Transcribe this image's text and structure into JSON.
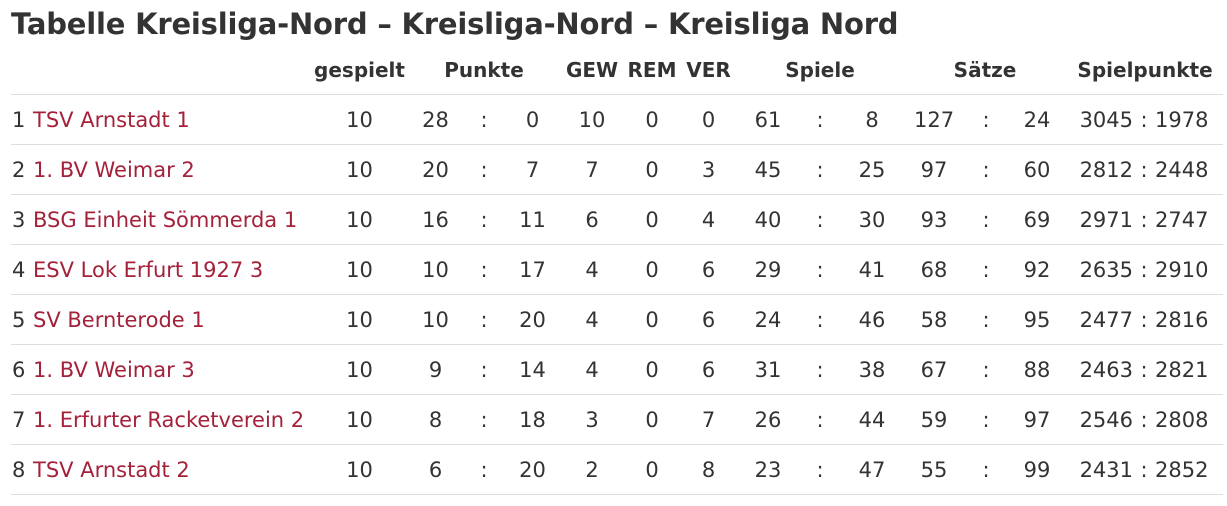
{
  "page": {
    "title": "Tabelle Kreisliga-Nord – Kreisliga-Nord – Kreisliga Nord"
  },
  "colors": {
    "team_link": "#a4213a",
    "text": "#333333",
    "row_border": "#dddddd"
  },
  "table": {
    "headers": {
      "played": "gespielt",
      "points": "Punkte",
      "won": "GEW",
      "drawn": "REM",
      "lost": "VER",
      "games": "Spiele",
      "sets": "Sätze",
      "match_points": "Spielpunkte"
    },
    "separator": ":",
    "rows": [
      {
        "rank": "1",
        "team": "TSV Arnstadt 1",
        "played": "10",
        "points_for": "28",
        "points_against": "0",
        "won": "10",
        "drawn": "0",
        "lost": "0",
        "games_for": "61",
        "games_against": "8",
        "sets_for": "127",
        "sets_against": "24",
        "sp_for": "3045",
        "sp_against": "1978"
      },
      {
        "rank": "2",
        "team": "1. BV Weimar 2",
        "played": "10",
        "points_for": "20",
        "points_against": "7",
        "won": "7",
        "drawn": "0",
        "lost": "3",
        "games_for": "45",
        "games_against": "25",
        "sets_for": "97",
        "sets_against": "60",
        "sp_for": "2812",
        "sp_against": "2448"
      },
      {
        "rank": "3",
        "team": "BSG Einheit Sömmerda 1",
        "played": "10",
        "points_for": "16",
        "points_against": "11",
        "won": "6",
        "drawn": "0",
        "lost": "4",
        "games_for": "40",
        "games_against": "30",
        "sets_for": "93",
        "sets_against": "69",
        "sp_for": "2971",
        "sp_against": "2747"
      },
      {
        "rank": "4",
        "team": "ESV Lok Erfurt 1927 3",
        "played": "10",
        "points_for": "10",
        "points_against": "17",
        "won": "4",
        "drawn": "0",
        "lost": "6",
        "games_for": "29",
        "games_against": "41",
        "sets_for": "68",
        "sets_against": "92",
        "sp_for": "2635",
        "sp_against": "2910"
      },
      {
        "rank": "5",
        "team": "SV Bernterode 1",
        "played": "10",
        "points_for": "10",
        "points_against": "20",
        "won": "4",
        "drawn": "0",
        "lost": "6",
        "games_for": "24",
        "games_against": "46",
        "sets_for": "58",
        "sets_against": "95",
        "sp_for": "2477",
        "sp_against": "2816"
      },
      {
        "rank": "6",
        "team": "1. BV Weimar 3",
        "played": "10",
        "points_for": "9",
        "points_against": "14",
        "won": "4",
        "drawn": "0",
        "lost": "6",
        "games_for": "31",
        "games_against": "38",
        "sets_for": "67",
        "sets_against": "88",
        "sp_for": "2463",
        "sp_against": "2821"
      },
      {
        "rank": "7",
        "team": "1. Erfurter Racketverein 2",
        "played": "10",
        "points_for": "8",
        "points_against": "18",
        "won": "3",
        "drawn": "0",
        "lost": "7",
        "games_for": "26",
        "games_against": "44",
        "sets_for": "59",
        "sets_against": "97",
        "sp_for": "2546",
        "sp_against": "2808"
      },
      {
        "rank": "8",
        "team": "TSV Arnstadt 2",
        "played": "10",
        "points_for": "6",
        "points_against": "20",
        "won": "2",
        "drawn": "0",
        "lost": "8",
        "games_for": "23",
        "games_against": "47",
        "sets_for": "55",
        "sets_against": "99",
        "sp_for": "2431",
        "sp_against": "2852"
      }
    ]
  }
}
